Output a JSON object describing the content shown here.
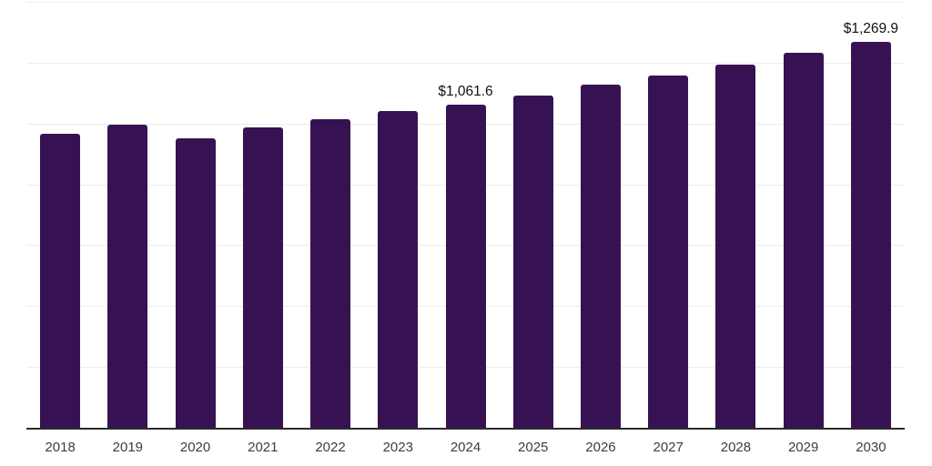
{
  "chart_data": {
    "type": "bar",
    "categories": [
      "2018",
      "2019",
      "2020",
      "2021",
      "2022",
      "2023",
      "2024",
      "2025",
      "2026",
      "2027",
      "2028",
      "2029",
      "2030"
    ],
    "values": [
      965,
      995,
      950,
      987,
      1014,
      1040,
      1061.6,
      1092,
      1127,
      1159,
      1195,
      1232,
      1269.9
    ],
    "data_labels": {
      "2024": "$1,061.6",
      "2030": "$1,269.9"
    },
    "title": "",
    "xlabel": "",
    "ylabel": "",
    "ylim": [
      0,
      1400
    ],
    "gridline_step": 200,
    "grid": "horizontal",
    "y_tick_labels_visible": false,
    "legend": "none"
  },
  "colors": {
    "bar": "#371252",
    "gridline": "#ececec",
    "axis_line": "#2b2b2b",
    "x_tick_label": "#3d3d3d",
    "data_label": "#111111",
    "background": "#ffffff"
  }
}
